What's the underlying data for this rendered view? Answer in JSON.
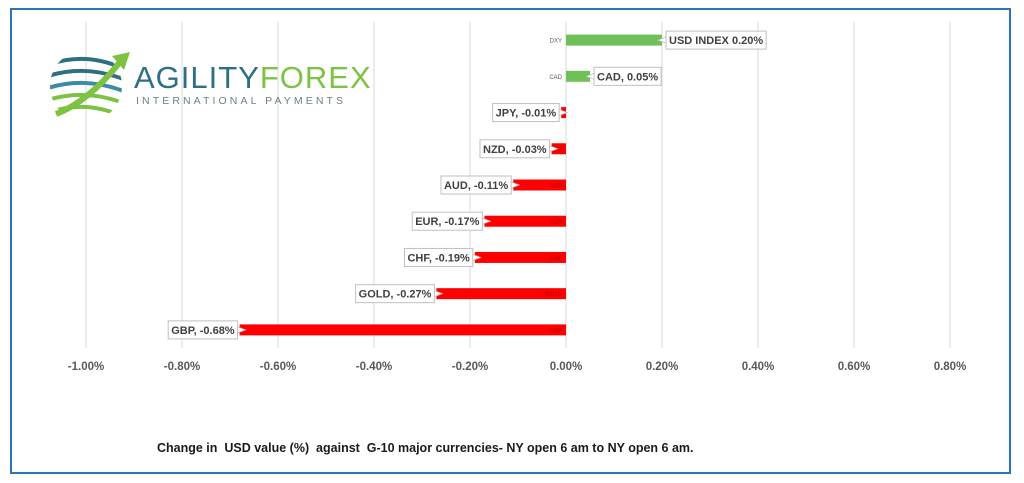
{
  "logo": {
    "name_part1": "AGILITY",
    "name_part2": "FOREX",
    "tagline": "INTERNATIONAL PAYMENTS"
  },
  "caption": "Change in  USD value (%)  against  G-10 major currencies- NY open 6 am to NY open 6 am.",
  "colors": {
    "positive": "#70c05a",
    "negative": "#ff0000",
    "grid": "#d9d9d9",
    "frame": "#2e75b6"
  },
  "chart_data": {
    "type": "bar",
    "orientation": "horizontal",
    "categories": [
      "DXY",
      "CAD",
      "JPY",
      "NZD",
      "AUD",
      "EUR",
      "CHF",
      "GOLD",
      "GBP"
    ],
    "values": [
      0.2,
      0.05,
      -0.01,
      -0.03,
      -0.11,
      -0.17,
      -0.19,
      -0.27,
      -0.68
    ],
    "data_labels": [
      "USD INDEX 0.20%",
      "CAD, 0.05%",
      "JPY, -0.01%",
      "NZD, -0.03%",
      "AUD, -0.11%",
      "EUR, -0.17%",
      "CHF, -0.19%",
      "GOLD, -0.27%",
      "GBP, -0.68%"
    ],
    "x_ticks": [
      "-1.00%",
      "-0.80%",
      "-0.60%",
      "-0.40%",
      "-0.20%",
      "0.00%",
      "0.20%",
      "0.40%",
      "0.60%",
      "0.80%"
    ],
    "xlim": [
      -1.0,
      0.8
    ],
    "grid": true
  }
}
